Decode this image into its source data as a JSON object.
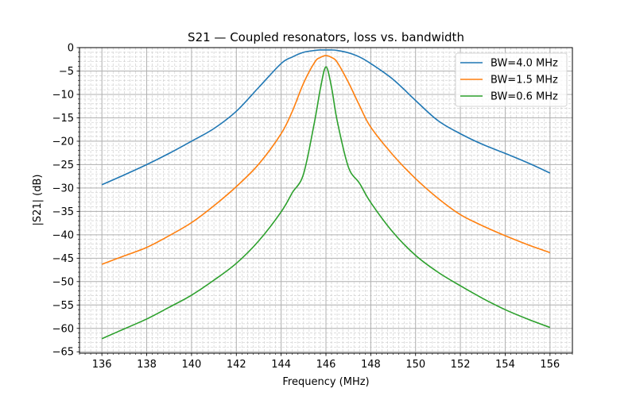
{
  "chart_data": {
    "type": "line",
    "title": "S21 — Coupled resonators, loss vs. bandwidth",
    "xlabel": "Frequency (MHz)",
    "ylabel": "|S21| (dB)",
    "xlim": [
      135,
      157
    ],
    "ylim": [
      -65.3,
      0
    ],
    "xticks": [
      136,
      138,
      140,
      142,
      144,
      146,
      148,
      150,
      152,
      154,
      156
    ],
    "yticks": [
      0,
      -5,
      -10,
      -15,
      -20,
      -25,
      -30,
      -35,
      -40,
      -45,
      -50,
      -55,
      -60,
      -65
    ],
    "x_minor_step": 0.25,
    "y_minor_step": 1,
    "grid": {
      "major": true,
      "minor": true
    },
    "legend_position": "top-right",
    "x": [
      136,
      137,
      138,
      139,
      140,
      141,
      142,
      143,
      144,
      144.5,
      145,
      145.5,
      145.75,
      146,
      146.25,
      146.5,
      147,
      147.5,
      148,
      149,
      150,
      151,
      152,
      153,
      154,
      155,
      156
    ],
    "series": [
      {
        "name": "BW=4.0 MHz",
        "color": "#1f77b4",
        "values": [
          -29.3,
          -27.2,
          -25.0,
          -22.6,
          -20.0,
          -17.3,
          -13.6,
          -8.5,
          -3.4,
          -2.0,
          -1.0,
          -0.6,
          -0.5,
          -0.5,
          -0.5,
          -0.6,
          -1.1,
          -2.0,
          -3.4,
          -6.8,
          -11.3,
          -15.6,
          -18.4,
          -20.7,
          -22.6,
          -24.6,
          -26.8
        ]
      },
      {
        "name": "BW=1.5 MHz",
        "color": "#ff7f0e",
        "values": [
          -46.3,
          -44.5,
          -42.7,
          -40.2,
          -37.4,
          -33.8,
          -29.7,
          -24.9,
          -18.4,
          -13.6,
          -7.6,
          -3.1,
          -2.1,
          -1.7,
          -2.1,
          -3.1,
          -7.4,
          -12.4,
          -17.0,
          -23.0,
          -28.0,
          -32.2,
          -35.7,
          -38.1,
          -40.2,
          -42.1,
          -43.8
        ]
      },
      {
        "name": "BW=0.6 MHz",
        "color": "#2ca02c",
        "values": [
          -62.2,
          -60.1,
          -58.0,
          -55.5,
          -52.9,
          -49.7,
          -46.1,
          -41.3,
          -35.1,
          -31.0,
          -27.0,
          -15.6,
          -8.8,
          -4.1,
          -8.5,
          -15.6,
          -25.5,
          -29.0,
          -33.1,
          -39.5,
          -44.4,
          -48.0,
          -50.9,
          -53.6,
          -56.0,
          -58.0,
          -59.8
        ]
      }
    ]
  }
}
